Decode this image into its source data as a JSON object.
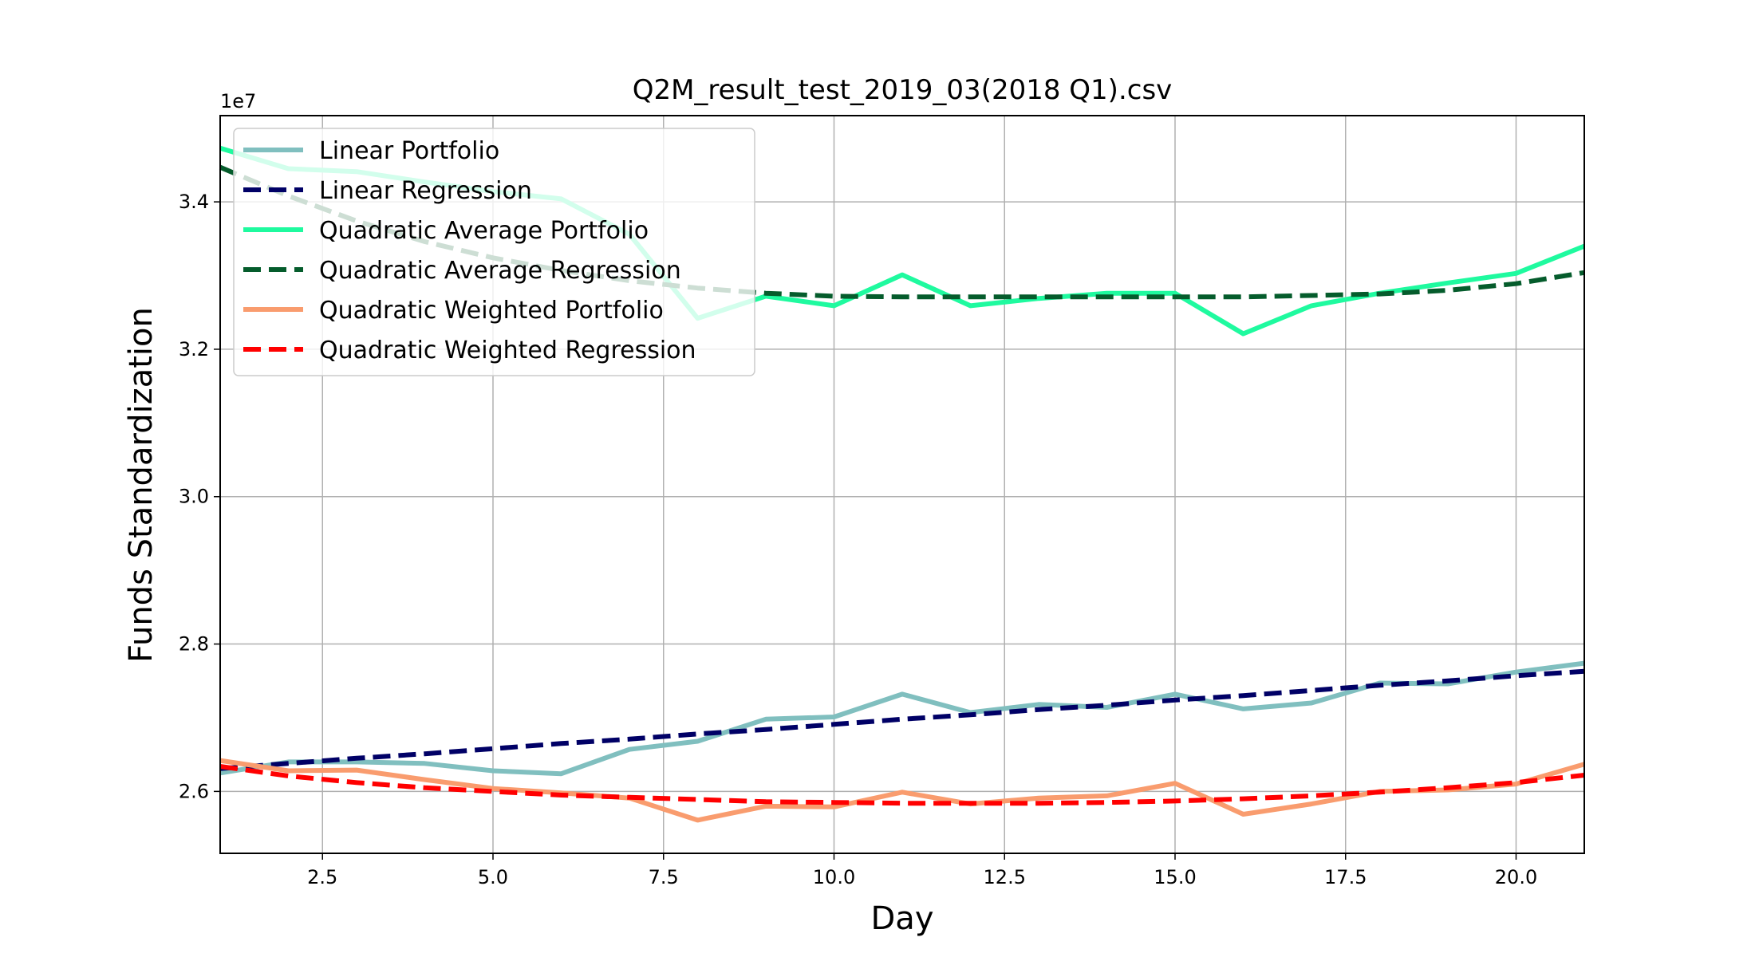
{
  "chart_data": {
    "type": "line",
    "title": "Q2M_result_test_2019_03(2018 Q1).csv",
    "xlabel": "Day",
    "ylabel": "Funds Standardization",
    "y_offset_label": "1e7",
    "xlim": [
      1,
      21
    ],
    "ylim": [
      2.516,
      3.517
    ],
    "xticks": [
      2.5,
      5.0,
      7.5,
      10.0,
      12.5,
      15.0,
      17.5,
      20.0
    ],
    "xtick_labels": [
      "2.5",
      "5.0",
      "7.5",
      "10.0",
      "12.5",
      "15.0",
      "17.5",
      "20.0"
    ],
    "yticks": [
      2.6,
      2.8,
      3.0,
      3.2,
      3.4
    ],
    "ytick_labels": [
      "2.6",
      "2.8",
      "3.0",
      "3.2",
      "3.4"
    ],
    "grid": true,
    "legend_position": "upper-left",
    "x": [
      1,
      2,
      3,
      4,
      5,
      6,
      7,
      8,
      9,
      10,
      11,
      12,
      13,
      14,
      15,
      16,
      17,
      18,
      19,
      20,
      21
    ],
    "series": [
      {
        "name": "Linear Portfolio",
        "color": "#80bfbf",
        "dash": false,
        "values": [
          2.625,
          2.64,
          2.64,
          2.638,
          2.628,
          2.624,
          2.657,
          2.668,
          2.698,
          2.701,
          2.732,
          2.707,
          2.718,
          2.714,
          2.732,
          2.712,
          2.72,
          2.747,
          2.746,
          2.762,
          2.774
        ]
      },
      {
        "name": "Linear Regression",
        "color": "#000066",
        "dash": true,
        "values": [
          2.631,
          2.638,
          2.645,
          2.651,
          2.658,
          2.665,
          2.671,
          2.678,
          2.684,
          2.691,
          2.698,
          2.704,
          2.711,
          2.717,
          2.724,
          2.73,
          2.737,
          2.744,
          2.75,
          2.757,
          2.763
        ]
      },
      {
        "name": "Quadratic Average Portfolio",
        "color": "#1ffa9f",
        "dash": false,
        "values": [
          3.473,
          3.445,
          3.441,
          3.427,
          3.414,
          3.404,
          3.356,
          3.242,
          3.272,
          3.259,
          3.301,
          3.259,
          3.269,
          3.276,
          3.276,
          3.221,
          3.259,
          3.276,
          3.29,
          3.303,
          3.34
        ]
      },
      {
        "name": "Quadratic Average Regression",
        "color": "#055c2c",
        "dash": true,
        "values": [
          3.447,
          3.408,
          3.374,
          3.346,
          3.324,
          3.307,
          3.293,
          3.283,
          3.276,
          3.272,
          3.271,
          3.271,
          3.271,
          3.271,
          3.271,
          3.271,
          3.273,
          3.275,
          3.28,
          3.289,
          3.304
        ]
      },
      {
        "name": "Quadratic Weighted Portfolio",
        "color": "#f99c6e",
        "dash": false,
        "values": [
          2.642,
          2.628,
          2.629,
          2.616,
          2.604,
          2.598,
          2.591,
          2.561,
          2.58,
          2.579,
          2.599,
          2.583,
          2.591,
          2.594,
          2.611,
          2.569,
          2.583,
          2.6,
          2.602,
          2.61,
          2.637
        ]
      },
      {
        "name": "Quadratic Weighted Regression",
        "color": "#ff0000",
        "dash": true,
        "values": [
          2.634,
          2.621,
          2.612,
          2.605,
          2.6,
          2.595,
          2.592,
          2.589,
          2.586,
          2.585,
          2.584,
          2.584,
          2.584,
          2.585,
          2.587,
          2.59,
          2.594,
          2.599,
          2.605,
          2.612,
          2.622
        ]
      }
    ]
  }
}
